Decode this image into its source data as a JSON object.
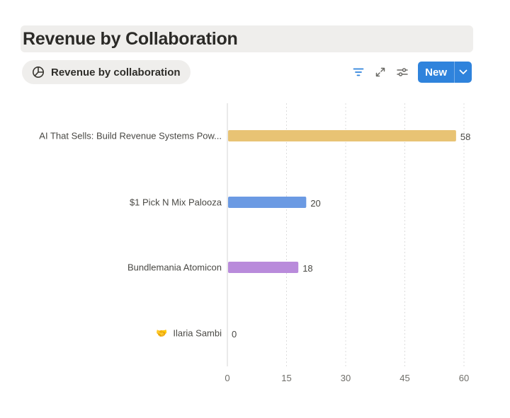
{
  "title": "Revenue by Collaboration",
  "view_tab": {
    "label": "Revenue by collaboration",
    "icon": "pie-chart-icon"
  },
  "toolbar": {
    "icons": [
      "filter-icon",
      "expand-icon",
      "settings-sliders-icon"
    ],
    "new_label": "New",
    "accent_color": "#2f83dc"
  },
  "chart_data": {
    "type": "bar",
    "orientation": "horizontal",
    "categories": [
      "AI That Sells: Build Revenue Systems Pow...",
      "$1 Pick N Mix Palooza",
      "Bundlemania Atomicon",
      "Ilaria Sambi"
    ],
    "category_prefix": [
      "",
      "",
      "",
      "🤝"
    ],
    "values": [
      58,
      20,
      18,
      0
    ],
    "colors": [
      "#e8c374",
      "#6b9ae3",
      "#b98bdb",
      "#cccccc"
    ],
    "xlim": [
      0,
      60
    ],
    "xticks": [
      0,
      15,
      30,
      45,
      60
    ],
    "grid": true,
    "xlabel": "",
    "ylabel": ""
  }
}
